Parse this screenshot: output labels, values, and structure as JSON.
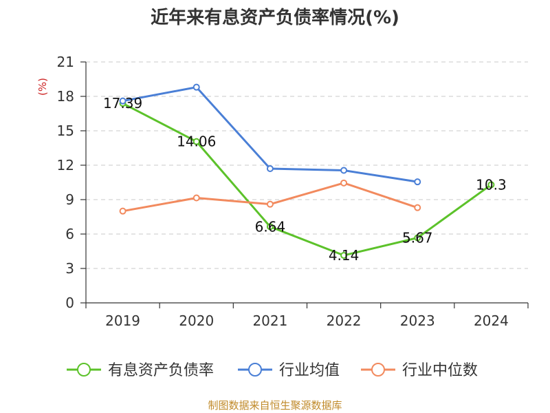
{
  "chart_data": {
    "type": "line",
    "title": "近年来有息资产负债率情况(%)",
    "ylabel": "(%)",
    "categories": [
      "2019",
      "2020",
      "2021",
      "2022",
      "2023",
      "2024"
    ],
    "ylim": [
      0,
      21
    ],
    "yticks": [
      0,
      3,
      6,
      9,
      12,
      15,
      18,
      21
    ],
    "grid": true,
    "legend_position": "bottom",
    "series": [
      {
        "name": "有息资产负债率",
        "color": "#5cc22a",
        "values": [
          17.39,
          14.06,
          6.64,
          4.14,
          5.67,
          10.3
        ],
        "labels": [
          "17.39",
          "14.06",
          "6.64",
          "4.14",
          "5.67",
          "10.3"
        ]
      },
      {
        "name": "行业均值",
        "color": "#4a7fd6",
        "values": [
          17.6,
          18.8,
          11.7,
          11.55,
          10.55,
          null
        ]
      },
      {
        "name": "行业中位数",
        "color": "#f28a5e",
        "values": [
          8.0,
          9.15,
          8.6,
          10.45,
          8.3,
          null
        ]
      }
    ]
  },
  "source": "制图数据来自恒生聚源数据库"
}
